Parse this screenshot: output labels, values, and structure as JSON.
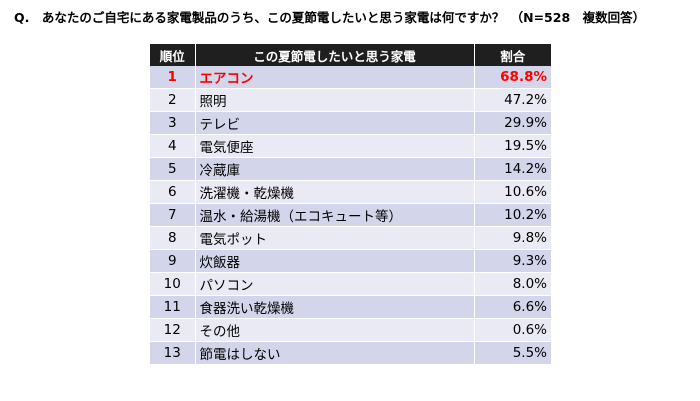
{
  "question": "Q.　あなたのご自宅にある家電製品のうち、この夏節電したいと思う家電は何ですか？　（N=528　複数回答）",
  "table": {
    "headers": {
      "rank": "順位",
      "item": "この夏節電したいと思う家電",
      "share": "割合"
    },
    "rows": [
      {
        "rank": "1",
        "item": "エアコン",
        "share": "68.8%"
      },
      {
        "rank": "2",
        "item": "照明",
        "share": "47.2%"
      },
      {
        "rank": "3",
        "item": "テレビ",
        "share": "29.9%"
      },
      {
        "rank": "4",
        "item": "電気便座",
        "share": "19.5%"
      },
      {
        "rank": "5",
        "item": "冷蔵庫",
        "share": "14.2%"
      },
      {
        "rank": "6",
        "item": "洗濯機・乾燥機",
        "share": "10.6%"
      },
      {
        "rank": "7",
        "item": "温水・給湯機（エコキュート等）",
        "share": "10.2%"
      },
      {
        "rank": "8",
        "item": "電気ポット",
        "share": "9.8%"
      },
      {
        "rank": "9",
        "item": "炊飯器",
        "share": "9.3%"
      },
      {
        "rank": "10",
        "item": "パソコン",
        "share": "8.0%"
      },
      {
        "rank": "11",
        "item": "食器洗い乾燥機",
        "share": "6.6%"
      },
      {
        "rank": "12",
        "item": "その他",
        "share": "0.6%"
      },
      {
        "rank": "13",
        "item": "節電はしない",
        "share": "5.5%"
      }
    ]
  },
  "colors": {
    "header_bg": "#1f1f1f",
    "row_odd": "#d3d5ea",
    "row_even": "#e9eaf4",
    "highlight": "#ff0000"
  }
}
